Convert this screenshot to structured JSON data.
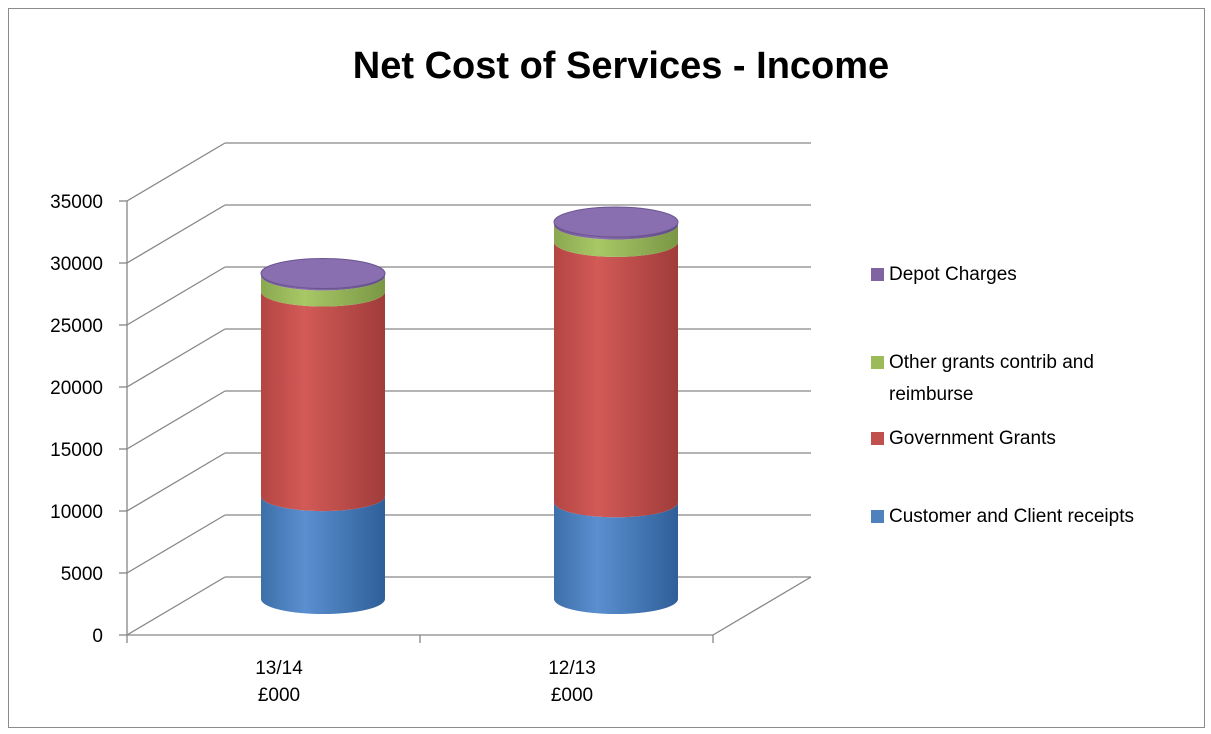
{
  "chart_data": {
    "type": "bar",
    "stacked": true,
    "three_d": true,
    "bar_shape": "cylinder",
    "title": "Net Cost of Services - Income",
    "categories": [
      "13/14|£000",
      "12/13|£000"
    ],
    "series": [
      {
        "name": "Customer and Client receipts",
        "color": "#4f81bd",
        "values": [
          8300,
          7800
        ]
      },
      {
        "name": "Government Grants",
        "color": "#c0504d",
        "values": [
          16500,
          21000
        ]
      },
      {
        "name": "Other grants contrib and reimburse",
        "color": "#9bbb59",
        "values": [
          1300,
          1400
        ]
      },
      {
        "name": "Depot Charges",
        "color": "#8064a2",
        "values": [
          150,
          200
        ]
      }
    ],
    "y_ticks": [
      0,
      5000,
      10000,
      15000,
      20000,
      25000,
      30000,
      35000
    ],
    "ylim": [
      0,
      35000
    ],
    "grid": true,
    "legend_position": "right",
    "legend_order": [
      "Depot Charges",
      "Other grants contrib and reimburse",
      "Government Grants",
      "Customer and Client receipts"
    ],
    "xlabel": "",
    "ylabel": ""
  }
}
